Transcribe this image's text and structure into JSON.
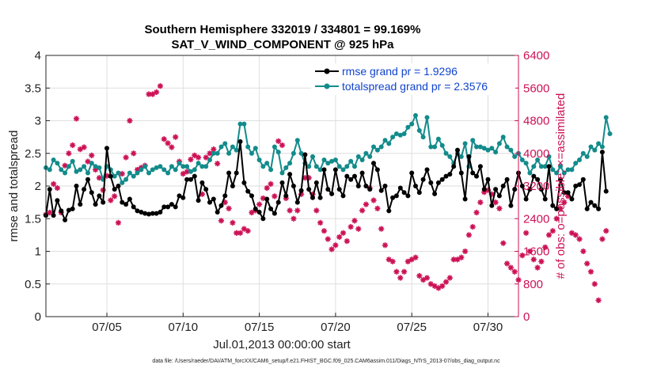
{
  "chart_data": {
    "type": "line",
    "title_line1": "Southern Hemisphere 332019 / 334801 = 99.169%",
    "title_line2": "SAT_V_WIND_COMPONENT @ 925 hPa",
    "ylabel": "rmse and totalspread",
    "y2label": "# of obs: o=possible; ×=assimilated",
    "xlabel": "Jul.01,2013 00:00:00 start",
    "footer": "data file: /Users/raeder/DAI/ATM_forcXX/CAM6_setup/f.e21.FHIST_BGC.f09_025.CAM6assim.011/Diags_NTrS_2013-07/obs_diag_output.nc",
    "xlim": [
      1.0,
      32.0
    ],
    "ylim": [
      0,
      4
    ],
    "y2lim": [
      0,
      6400
    ],
    "x_ticks": [
      5,
      10,
      15,
      20,
      25,
      30
    ],
    "x_tick_labels": [
      "07/05",
      "07/10",
      "07/15",
      "07/20",
      "07/25",
      "07/30"
    ],
    "y_ticks": [
      0,
      0.5,
      1,
      1.5,
      2,
      2.5,
      3,
      3.5,
      4
    ],
    "y_tick_labels": [
      "0",
      "0.5",
      "1",
      "1.5",
      "2",
      "2.5",
      "3",
      "3.5",
      "4"
    ],
    "y2_ticks": [
      0,
      800,
      1600,
      2400,
      3200,
      4000,
      4800,
      5600,
      6400
    ],
    "y2_tick_labels": [
      "0",
      "800",
      "1600",
      "2400",
      "3200",
      "4000",
      "4800",
      "5600",
      "6400"
    ],
    "x_step": 0.25,
    "series": [
      {
        "name": "rmse grand pr = 1.9296",
        "color": "#000000",
        "axis": "left",
        "x_start": 1.0,
        "values": [
          1.55,
          1.95,
          1.55,
          1.78,
          1.62,
          1.48,
          1.63,
          1.65,
          2.0,
          1.72,
          1.95,
          2.1,
          1.9,
          1.72,
          1.85,
          1.75,
          2.58,
          2.15,
          1.95,
          2.0,
          1.75,
          1.72,
          1.8,
          1.68,
          1.62,
          1.6,
          1.58,
          1.57,
          1.58,
          1.58,
          1.6,
          1.68,
          1.68,
          1.72,
          1.68,
          1.85,
          1.82,
          2.1,
          2.1,
          2.15,
          1.78,
          2.05,
          1.95,
          1.75,
          1.8,
          1.6,
          1.7,
          1.85,
          2.2,
          2.0,
          2.2,
          2.68,
          2.05,
          1.92,
          1.85,
          1.65,
          1.6,
          1.5,
          1.8,
          1.65,
          1.58,
          1.75,
          2.05,
          1.85,
          2.18,
          2.0,
          1.75,
          1.93,
          2.48,
          1.95,
          1.82,
          2.05,
          1.82,
          2.25,
          1.95,
          1.88,
          2.25,
          1.95,
          1.85,
          2.15,
          2.1,
          2.15,
          2.0,
          2.2,
          2.0,
          1.95,
          2.35,
          2.25,
          1.93,
          2.0,
          1.62,
          1.82,
          1.85,
          1.97,
          1.9,
          1.85,
          2.2,
          2.0,
          1.9,
          2.1,
          2.25,
          2.05,
          1.88,
          2.05,
          2.1,
          2.15,
          2.18,
          2.3,
          2.55,
          2.2,
          1.8,
          2.45,
          2.2,
          2.15,
          2.3,
          1.95,
          2.1,
          1.7,
          1.95,
          1.85,
          2.0,
          2.1,
          1.7,
          1.95,
          2.2,
          2.0,
          1.8,
          1.95,
          2.15,
          2.1,
          1.95,
          1.8,
          2.3,
          1.7,
          1.65,
          2.1,
          1.9,
          1.9,
          1.8,
          2.0,
          2.02,
          2.1,
          1.65,
          1.75,
          1.7,
          1.65,
          2.52,
          1.92
        ]
      },
      {
        "name": "totalspread grand pr = 2.3576",
        "color": "#138b8b",
        "axis": "left",
        "x_start": 1.0,
        "values": [
          2.28,
          2.25,
          2.4,
          2.35,
          2.25,
          2.2,
          2.3,
          2.38,
          2.22,
          2.25,
          2.3,
          2.2,
          2.35,
          2.3,
          2.28,
          2.1,
          2.3,
          2.25,
          2.15,
          2.2,
          2.05,
          2.1,
          2.2,
          2.15,
          2.2,
          2.25,
          2.3,
          2.2,
          2.25,
          2.28,
          2.3,
          2.25,
          2.2,
          2.3,
          2.25,
          2.35,
          2.3,
          2.3,
          2.22,
          2.25,
          2.35,
          2.3,
          2.3,
          2.4,
          2.5,
          2.5,
          2.6,
          2.65,
          2.5,
          2.6,
          2.55,
          2.95,
          2.95,
          2.6,
          2.5,
          2.58,
          2.4,
          2.3,
          2.35,
          2.25,
          2.6,
          2.52,
          2.2,
          2.28,
          2.35,
          2.5,
          2.7,
          2.5,
          2.35,
          2.3,
          2.45,
          2.3,
          2.25,
          2.4,
          2.35,
          2.38,
          2.4,
          2.3,
          2.25,
          2.3,
          2.38,
          2.3,
          2.45,
          2.4,
          2.5,
          2.45,
          2.6,
          2.55,
          2.6,
          2.7,
          2.65,
          2.75,
          2.8,
          2.78,
          2.8,
          2.9,
          2.95,
          3.08,
          2.85,
          2.75,
          3.05,
          2.6,
          2.6,
          2.72,
          2.62,
          2.5,
          2.45,
          2.35,
          2.5,
          2.45,
          2.65,
          2.3,
          2.7,
          2.6,
          2.6,
          2.58,
          2.55,
          2.58,
          2.52,
          2.65,
          2.75,
          2.6,
          2.55,
          2.45,
          2.5,
          2.4,
          2.35,
          2.2,
          2.3,
          2.4,
          2.3,
          2.3,
          2.45,
          2.25,
          2.2,
          2.3,
          2.2,
          2.25,
          2.25,
          2.35,
          2.4,
          2.5,
          2.45,
          2.6,
          2.55,
          2.65,
          2.6,
          3.05,
          2.8
        ]
      },
      {
        "name": "# of obs assimilated",
        "color": "#cc1155",
        "axis": "right",
        "x_start": 1.0,
        "values": [
          2500,
          2550,
          3250,
          3150,
          2550,
          3700,
          4000,
          4200,
          4850,
          4100,
          4150,
          3800,
          3950,
          3600,
          3400,
          3100,
          3450,
          2850,
          2950,
          2300,
          3500,
          3900,
          4800,
          4000,
          3600,
          3650,
          3700,
          5450,
          5450,
          5500,
          5650,
          4350,
          4250,
          4150,
          4400,
          3800,
          3500,
          3550,
          3850,
          3950,
          3900,
          3000,
          3900,
          4000,
          4100,
          3750,
          2350,
          2800,
          2650,
          2300,
          2050,
          2050,
          2150,
          2100,
          2550,
          2600,
          2750,
          2900,
          3150,
          3250,
          2950,
          4300,
          4200,
          2900,
          2600,
          2400,
          2600,
          3000,
          3400,
          3400,
          3000,
          2600,
          2300,
          2100,
          1900,
          1650,
          1750,
          1950,
          2050,
          1850,
          2200,
          2350,
          2150,
          2600,
          2750,
          3150,
          2850,
          2650,
          2150,
          1750,
          1400,
          1350,
          1100,
          950,
          1100,
          1350,
          1400,
          1450,
          1000,
          900,
          950,
          800,
          750,
          700,
          750,
          850,
          950,
          1400,
          1400,
          1450,
          1600,
          2000,
          2200,
          2550,
          2800,
          3050,
          3100,
          3000,
          2800,
          2650,
          1800,
          1300,
          1200,
          1100,
          900,
          1500,
          2050,
          1600,
          1400,
          1200,
          1350,
          1700,
          2000,
          2100,
          2400,
          2650,
          2800,
          2950,
          2050,
          2000,
          1900,
          1600,
          1300,
          1100,
          800,
          400,
          1900,
          2100
        ]
      }
    ],
    "legend": [
      {
        "label": "rmse grand pr = 1.9296",
        "color": "#000000"
      },
      {
        "label": "totalspread grand pr = 2.3576",
        "color": "#138b8b"
      }
    ]
  }
}
